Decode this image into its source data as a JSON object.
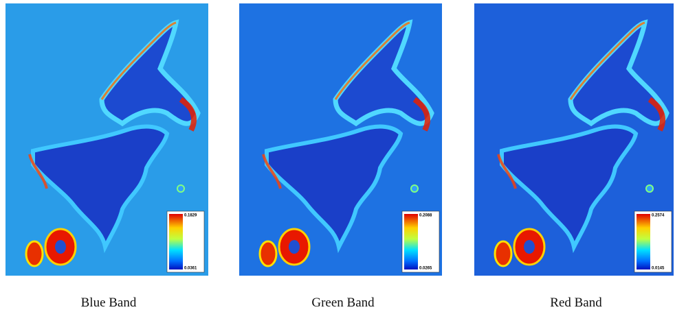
{
  "panels": [
    {
      "caption": "Blue Band",
      "colorbar": {
        "max": "0.1829",
        "min": "0.0361"
      }
    },
    {
      "caption": "Green Band",
      "colorbar": {
        "max": "0.2088",
        "min": "0.0265"
      }
    },
    {
      "caption": "Red Band",
      "colorbar": {
        "max": "0.2574",
        "min": "0.0145"
      }
    }
  ]
}
